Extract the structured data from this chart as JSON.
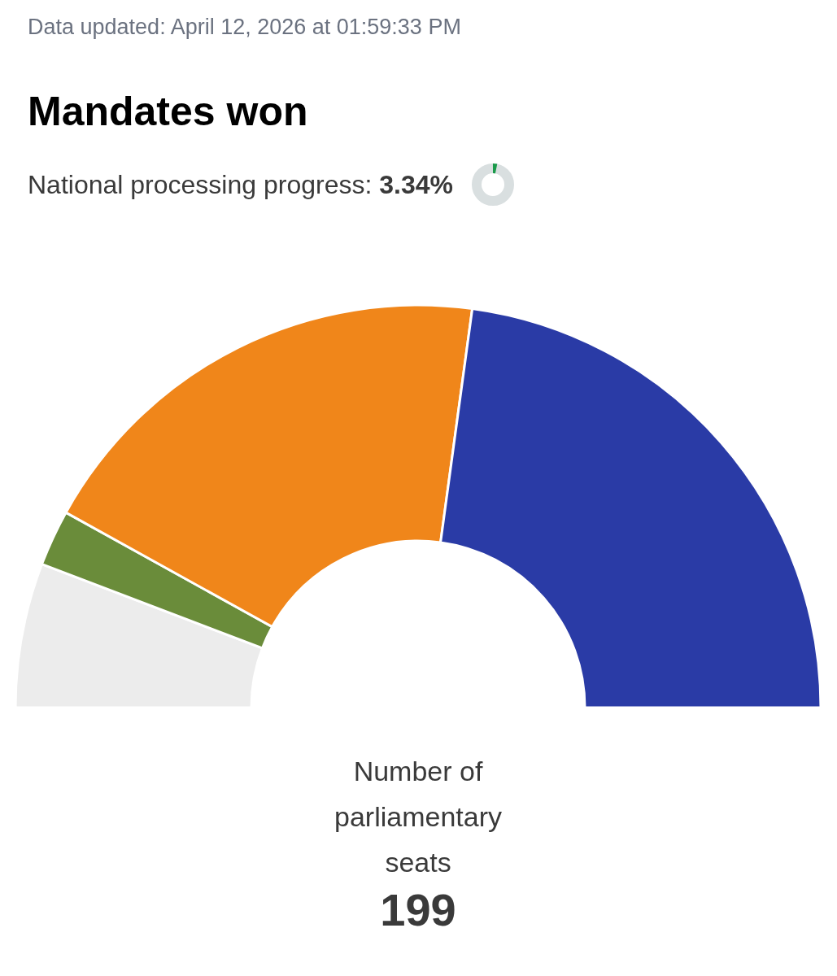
{
  "chart_data": {
    "type": "donut",
    "title": "Mandates won",
    "subtitle": "National processing progress: 3.34%",
    "categories": [
      null,
      null,
      null,
      null
    ],
    "values": [
      11.6,
      4.5,
      38.2,
      45.7
    ],
    "colors": [
      "#ececec",
      "#6a8c3a",
      "#f0861a",
      "#2a3ba6"
    ],
    "annotations": [
      "Data updated: April 12, 2026 at 01:59:33 PM",
      "Number of parliamentary seats",
      "199"
    ]
  }
}
